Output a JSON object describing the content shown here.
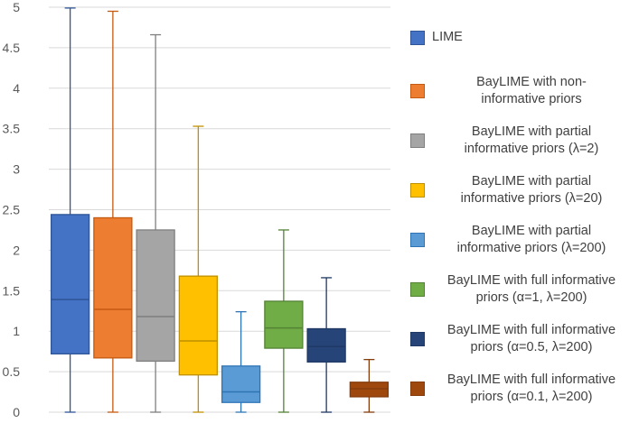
{
  "chart_data": {
    "type": "box",
    "title": "",
    "xlabel": "",
    "ylabel": "",
    "ylim": [
      0,
      5
    ],
    "yticks": [
      "0",
      "0.5",
      "1",
      "1.5",
      "2",
      "2.5",
      "3",
      "3.5",
      "4",
      "4.5",
      "5"
    ],
    "grid": "horizontal",
    "legend_position": "right",
    "series": [
      {
        "name": "LIME",
        "color": "#4472C4",
        "stroke": "#2F5597",
        "min": 0.0,
        "q1": 0.72,
        "median": 1.39,
        "q3": 2.44,
        "max": 4.99
      },
      {
        "name": "BayLIME with non-informative priors",
        "color": "#ED7D31",
        "stroke": "#C55A11",
        "min": 0.0,
        "q1": 0.67,
        "median": 1.27,
        "q3": 2.4,
        "max": 4.95
      },
      {
        "name": "BayLIME with partial informative priors (λ=2)",
        "color": "#A5A5A5",
        "stroke": "#7F7F7F",
        "min": 0.0,
        "q1": 0.63,
        "median": 1.18,
        "q3": 2.25,
        "max": 4.66
      },
      {
        "name": "BayLIME with partial informative priors (λ=20)",
        "color": "#FFC000",
        "stroke": "#BF9000",
        "min": 0.0,
        "q1": 0.46,
        "median": 0.88,
        "q3": 1.68,
        "max": 3.53
      },
      {
        "name": "BayLIME with partial informative priors (λ=200)",
        "color": "#5B9BD5",
        "stroke": "#2E75B6",
        "min": 0.0,
        "q1": 0.12,
        "median": 0.25,
        "q3": 0.57,
        "max": 1.24
      },
      {
        "name": "BayLIME with full informative priors (α=1, λ=200)",
        "color": "#70AD47",
        "stroke": "#548235",
        "min": 0.0,
        "q1": 0.79,
        "median": 1.04,
        "q3": 1.37,
        "max": 2.25
      },
      {
        "name": "BayLIME with full informative priors (α=0.5, λ=200)",
        "color": "#264478",
        "stroke": "#1F3864",
        "min": 0.0,
        "q1": 0.62,
        "median": 0.81,
        "q3": 1.03,
        "max": 1.66
      },
      {
        "name": "BayLIME with full informative priors (α=0.1, λ=200)",
        "color": "#9E480E",
        "stroke": "#843C0C",
        "min": 0.0,
        "q1": 0.19,
        "median": 0.29,
        "q3": 0.37,
        "max": 0.65
      }
    ]
  },
  "legend": {
    "items": [
      {
        "line1": "LIME",
        "line2": ""
      },
      {
        "line1": "BayLIME with non-",
        "line2": "informative priors"
      },
      {
        "line1": "BayLIME with partial",
        "line2": "informative priors (λ=2)"
      },
      {
        "line1": "BayLIME with partial",
        "line2": "informative priors (λ=20)"
      },
      {
        "line1": "BayLIME with partial",
        "line2": "informative priors (λ=200)"
      },
      {
        "line1": "BayLIME with full informative",
        "line2": "priors (α=1, λ=200)"
      },
      {
        "line1": "BayLIME with full informative",
        "line2": "priors (α=0.5, λ=200)"
      },
      {
        "line1": "BayLIME with full informative",
        "line2": "priors (α=0.1, λ=200)"
      }
    ]
  }
}
